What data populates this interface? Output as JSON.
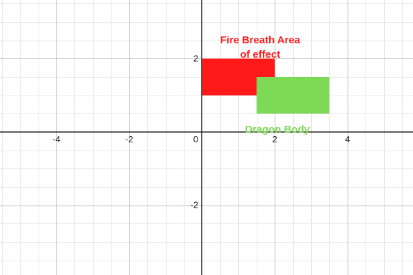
{
  "graph": {
    "x_range": [
      -5.55,
      5.8
    ],
    "y_range": [
      -3.9,
      3.6
    ],
    "major_step": 2,
    "minor_step": 0.5,
    "colors": {
      "background": "#ffffff",
      "minor_grid": "#e6e6e6",
      "major_grid": "#bdbdbd",
      "axis": "#222222",
      "tick_label": "#222222"
    },
    "x_tick_labels": [
      {
        "value": -4,
        "text": "-4"
      },
      {
        "value": -2,
        "text": "-2"
      },
      {
        "value": 0,
        "text": "0"
      },
      {
        "value": 2,
        "text": "2"
      },
      {
        "value": 4,
        "text": "4"
      }
    ],
    "y_tick_labels": [
      {
        "value": 2,
        "text": "2"
      },
      {
        "value": -2,
        "text": "-2"
      }
    ]
  },
  "shapes": [
    {
      "id": "fire-breath-rect",
      "x_min": 0,
      "x_max": 2,
      "y_min": 1,
      "y_max": 2,
      "color": "#ff1a1a"
    },
    {
      "id": "dragon-body-rect",
      "x_min": 1.5,
      "x_max": 3.5,
      "y_min": 0.5,
      "y_max": 1.5,
      "color": "#7ed957"
    }
  ],
  "annotations": {
    "fire_breath_line1": "Fire Breath Area",
    "fire_breath_line2": "of effect",
    "dragon_body": "Dragon Body",
    "fire_color": "#ff1a1a",
    "dragon_color": "#7ed957"
  }
}
